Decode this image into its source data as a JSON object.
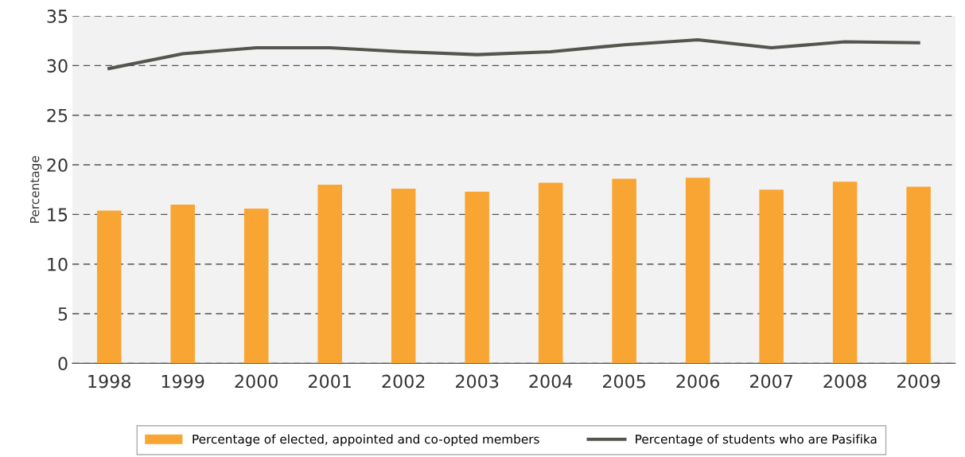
{
  "chart_data": {
    "type": "bar",
    "ylabel": "Percentage",
    "categories": [
      "1998",
      "1999",
      "2000",
      "2001",
      "2002",
      "2003",
      "2004",
      "2005",
      "2006",
      "2007",
      "2008",
      "2009"
    ],
    "series": [
      {
        "name": "Percentage of elected, appointed and co-opted members",
        "color": "#f9a533",
        "values": [
          15.4,
          16.0,
          15.6,
          18.0,
          17.6,
          17.3,
          18.2,
          18.6,
          18.7,
          17.5,
          18.3,
          17.8
        ]
      },
      {
        "name": "Percentage of students who are Pasifika",
        "type": "line",
        "color": "#55554f",
        "values": [
          29.7,
          31.2,
          31.8,
          31.8,
          31.4,
          31.1,
          31.4,
          32.1,
          32.6,
          31.8,
          32.4,
          32.3
        ]
      }
    ],
    "ylim": [
      0,
      35
    ],
    "yticks": [
      0,
      5,
      10,
      15,
      20,
      25,
      30,
      35
    ],
    "grid": "y",
    "legend": "bottom",
    "marker": "none",
    "line_style": "solid"
  }
}
